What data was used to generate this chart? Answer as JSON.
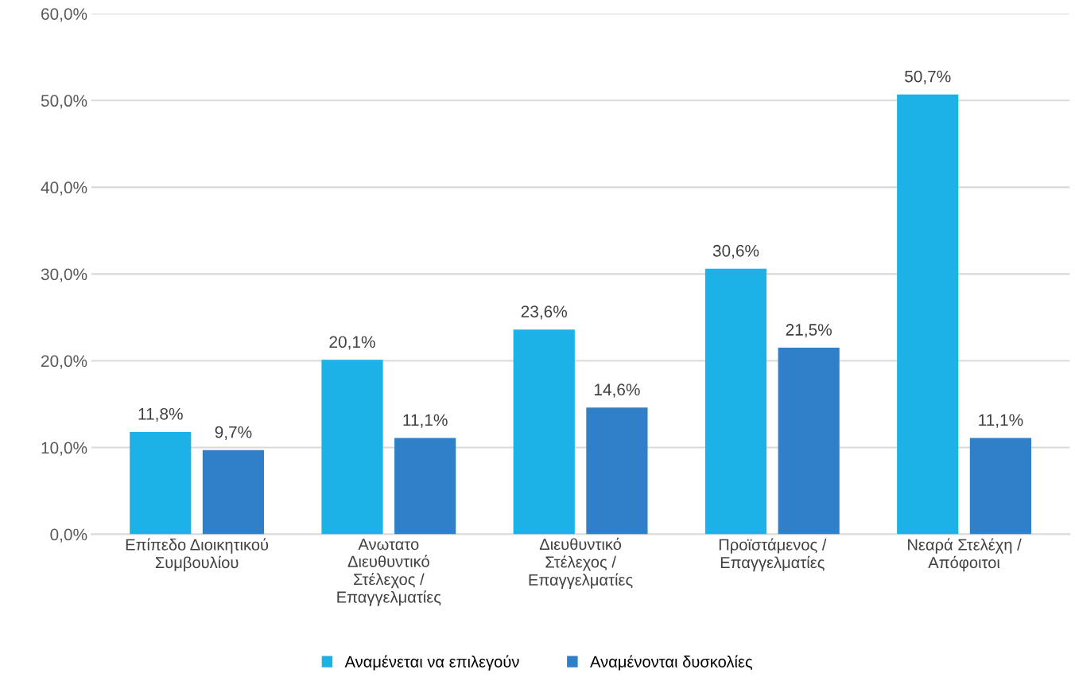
{
  "chart_data": {
    "type": "bar",
    "categories": [
      "Επίπεδο Διοικητικού\nΣυμβουλίου",
      "Ανωτατο\nΔιευθυντικό\nΣτέλεχος /\nΕπαγγελματίες",
      "Διευθυντικό\nΣτέλεχος /\nΕπαγγελματίες",
      "Προϊστάμενος /\nΕπαγγελματίες",
      "Νεαρά Στελέχη /\nΑπόφοιτοι"
    ],
    "series": [
      {
        "name": "Αναμένεται να επιλεγούν",
        "color": "#1cb2e8",
        "values": [
          11.8,
          20.1,
          23.6,
          30.6,
          50.7
        ],
        "value_labels": [
          "11,8%",
          "20,1%",
          "23,6%",
          "30,6%",
          "50,7%"
        ]
      },
      {
        "name": "Αναμένονται δυσκολίες",
        "color": "#2f80c8",
        "values": [
          9.7,
          11.1,
          14.6,
          21.5,
          11.1
        ],
        "value_labels": [
          "9,7%",
          "11,1%",
          "14,6%",
          "21,5%",
          "11,1%"
        ]
      }
    ],
    "ylim": [
      0,
      60
    ],
    "yticks": [
      {
        "value": 0,
        "label": "0,0%"
      },
      {
        "value": 10,
        "label": "10,0%"
      },
      {
        "value": 20,
        "label": "20,0%"
      },
      {
        "value": 30,
        "label": "30,0%"
      },
      {
        "value": 40,
        "label": "40,0%"
      },
      {
        "value": 50,
        "label": "50,0%"
      },
      {
        "value": 60,
        "label": "60,0%"
      }
    ],
    "grid": "y",
    "legend": "bottom"
  }
}
